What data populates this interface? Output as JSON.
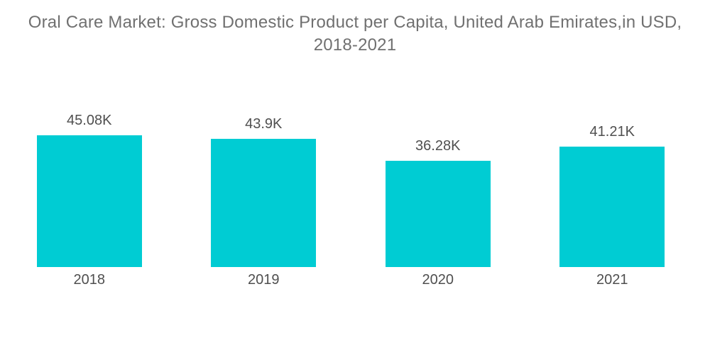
{
  "title": {
    "line1": "Oral Care Market: Gross Domestic Product per Capita, United Arab Emirates,in USD,",
    "line2": "2018-2021"
  },
  "chart_data": {
    "type": "bar",
    "title": "Oral Care Market: Gross Domestic Product per Capita, United Arab Emirates,in USD, 2018-2021",
    "categories": [
      "2018",
      "2019",
      "2020",
      "2021"
    ],
    "values": [
      45.08,
      43.9,
      36.28,
      41.21
    ],
    "value_labels": [
      "45.08K",
      "43.9K",
      "36.28K",
      "41.21K"
    ],
    "xlabel": "",
    "ylabel": "",
    "ylim": [
      0,
      50
    ],
    "grid": false,
    "legend": false,
    "bar_color": "#00CCD3",
    "value_label_color": "#4F4F4F",
    "axis_label_color": "#4F4F4F",
    "title_color": "#707070",
    "background": "#FFFFFF"
  }
}
